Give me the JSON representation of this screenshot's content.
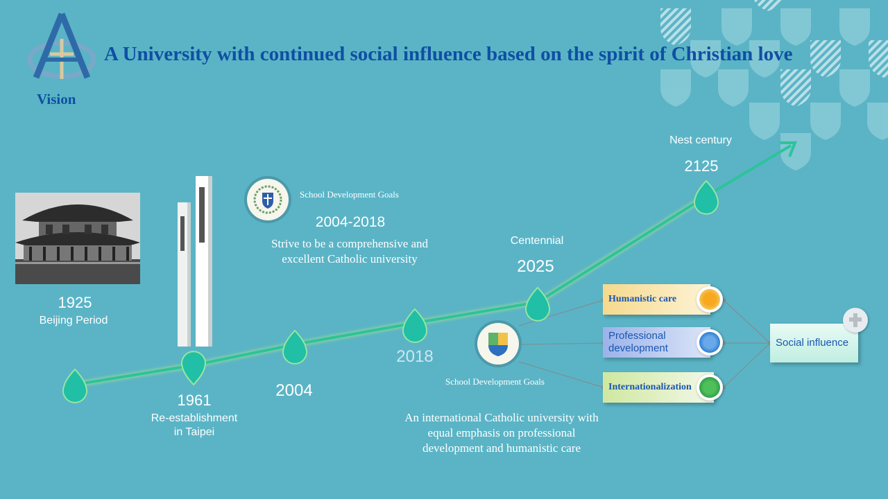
{
  "header": {
    "title": "A University with continued social influence based on the spirit of Christian love",
    "vision_label": "Vision",
    "logo_icon": "alpha-omega-logo-icon"
  },
  "timeline": {
    "milestones": [
      {
        "year": "1925",
        "label": "Beijing Period"
      },
      {
        "year": "1961",
        "label_line1": "Re-establishment",
        "label_line2": "in Taipei"
      },
      {
        "year": "2004"
      },
      {
        "year": "2018"
      },
      {
        "year": "2025",
        "label": "Centennial"
      },
      {
        "year": "2125",
        "label": "Nest century"
      }
    ]
  },
  "goal_2004": {
    "caption": "School Development Goals",
    "period": "2004-2018",
    "text_line1": "Strive to be a comprehensive and",
    "text_line2": "excellent  Catholic university"
  },
  "goal_2018": {
    "caption": "School Development Goals",
    "text_line1": "An international  Catholic university  with",
    "text_line2": "equal emphasis on professional",
    "text_line3": "development and humanistic  care"
  },
  "pillars": [
    {
      "label": "Humanistic care",
      "color": "#f3c86a",
      "icon": "orange-lion-icon"
    },
    {
      "label": "Professional development",
      "color": "#9bb3ea",
      "icon": "blue-fountain-icon"
    },
    {
      "label": "Internationalization",
      "color": "#cfe8a0",
      "icon": "green-globe-icon"
    }
  ],
  "outcome": {
    "label": "Social influence",
    "icon": "cross-icon"
  },
  "colors": {
    "background": "#5ab4c6",
    "title": "#0f4fa3",
    "line": "#2ec39a",
    "drop": "#20bfa6"
  }
}
